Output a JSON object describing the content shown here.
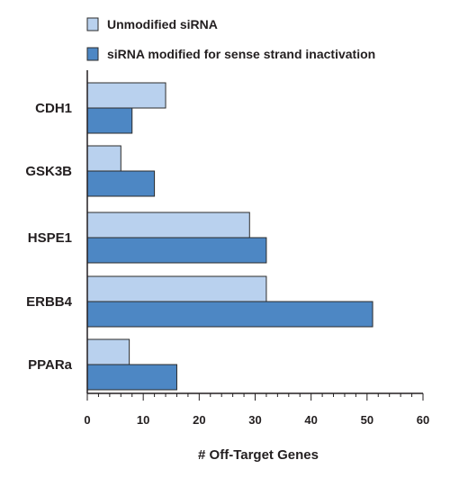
{
  "chart_data": {
    "type": "bar",
    "orientation": "horizontal",
    "categories": [
      "CDH1",
      "GSK3B",
      "HSPE1",
      "ERBB4",
      "PPARa"
    ],
    "series": [
      {
        "name": "Unmodified siRNA",
        "values": [
          14,
          6,
          29,
          32,
          7.5
        ],
        "color": "#b9d1ee"
      },
      {
        "name": "siRNA modified for sense strand inactivation",
        "values": [
          8,
          12,
          32,
          51,
          16
        ],
        "color": "#4d87c4"
      }
    ],
    "xlabel": "# Off-Target Genes",
    "ylabel": "",
    "xlim": [
      0,
      60
    ],
    "xticks": [
      0,
      10,
      20,
      30,
      40,
      50,
      60
    ],
    "grid": false,
    "legend_position": "top"
  }
}
